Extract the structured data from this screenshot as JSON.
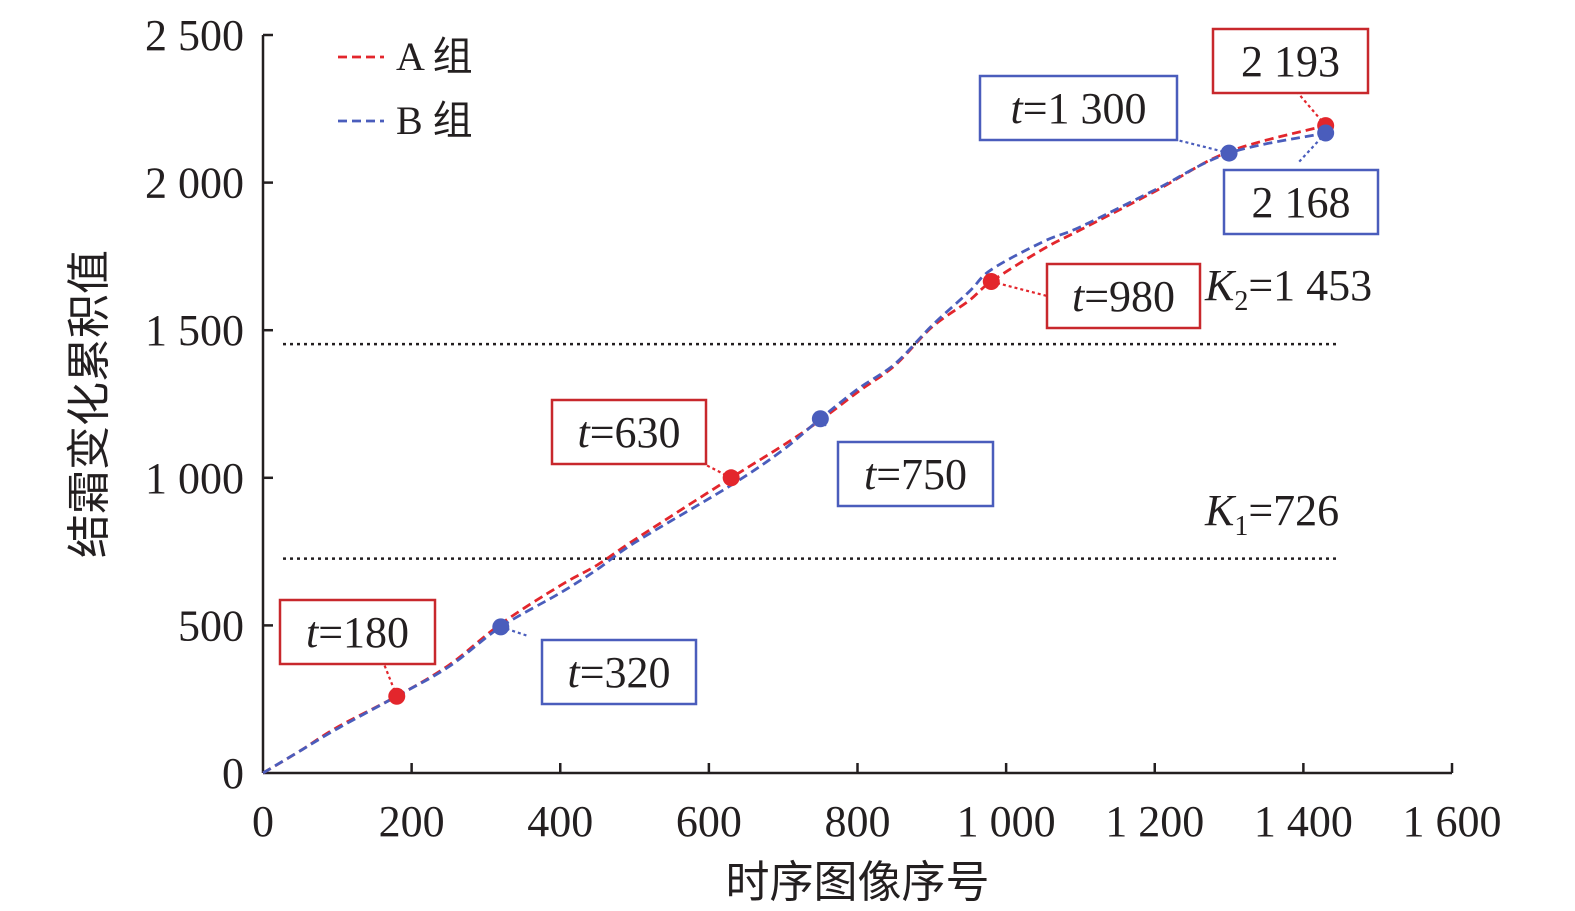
{
  "colors": {
    "series_a": "#e3262c",
    "series_b": "#4a5dbc",
    "axis": "#231f20",
    "box_red": "#c8282c",
    "box_blue": "#4a5dbc",
    "threshold": "#231f20"
  },
  "chart_data": {
    "type": "line",
    "xlabel": "时序图像序号",
    "ylabel": "结霜变化累积值",
    "xlim": [
      0,
      1600
    ],
    "ylim": [
      0,
      2500
    ],
    "x_ticks": [
      0,
      200,
      400,
      600,
      800,
      1000,
      1200,
      1400,
      1600
    ],
    "x_tick_labels": [
      "0",
      "200",
      "400",
      "600",
      "800",
      "1 000",
      "1 200",
      "1 400",
      "1 600"
    ],
    "y_ticks": [
      0,
      500,
      1000,
      1500,
      2000,
      2500
    ],
    "y_tick_labels": [
      "0",
      "500",
      "1 000",
      "1 500",
      "2 000",
      "2 500"
    ],
    "legend_position": "top-left",
    "series": [
      {
        "name": "A 组",
        "color": "#e3262c",
        "line_style": "dashed",
        "x": [
          0,
          50,
          100,
          180,
          250,
          320,
          400,
          450,
          500,
          630,
          700,
          750,
          800,
          850,
          900,
          950,
          980,
          1050,
          1100,
          1200,
          1300,
          1430
        ],
        "y": [
          0,
          75,
          155,
          260,
          365,
          505,
          635,
          705,
          790,
          1000,
          1110,
          1195,
          1290,
          1380,
          1510,
          1600,
          1665,
          1775,
          1840,
          1970,
          2105,
          2193
        ]
      },
      {
        "name": "B 组",
        "color": "#4a5dbc",
        "line_style": "dashed",
        "x": [
          0,
          50,
          100,
          180,
          250,
          320,
          400,
          450,
          500,
          630,
          700,
          750,
          800,
          850,
          900,
          950,
          980,
          1050,
          1100,
          1200,
          1300,
          1430
        ],
        "y": [
          0,
          75,
          150,
          260,
          360,
          495,
          610,
          690,
          780,
          975,
          1095,
          1200,
          1300,
          1385,
          1515,
          1630,
          1705,
          1800,
          1850,
          1975,
          2100,
          2168
        ]
      }
    ],
    "thresholds": [
      {
        "prefix": "K",
        "sub": "1",
        "value_text": "=726",
        "y": 726
      },
      {
        "prefix": "K",
        "sub": "2",
        "value_text": "=1 453",
        "y": 1453
      }
    ],
    "points": [
      {
        "series": "A 组",
        "x": 180,
        "y": 260,
        "t_prefix": "t",
        "label_text": "=180"
      },
      {
        "series": "B 组",
        "x": 320,
        "y": 495,
        "t_prefix": "t",
        "label_text": "=320"
      },
      {
        "series": "A 组",
        "x": 630,
        "y": 1000,
        "t_prefix": "t",
        "label_text": "=630"
      },
      {
        "series": "B 组",
        "x": 750,
        "y": 1200,
        "t_prefix": "t",
        "label_text": "=750"
      },
      {
        "series": "A 组",
        "x": 980,
        "y": 1665,
        "t_prefix": "t",
        "label_text": "=980"
      },
      {
        "series": "B 组",
        "x": 1300,
        "y": 2100,
        "t_prefix": "t",
        "label_text": "=1 300"
      },
      {
        "series": "A 组",
        "x": 1430,
        "y": 2193,
        "t_prefix": "",
        "label_text": "2 193"
      },
      {
        "series": "B 组",
        "x": 1430,
        "y": 2168,
        "t_prefix": "",
        "label_text": "2 168"
      }
    ]
  }
}
